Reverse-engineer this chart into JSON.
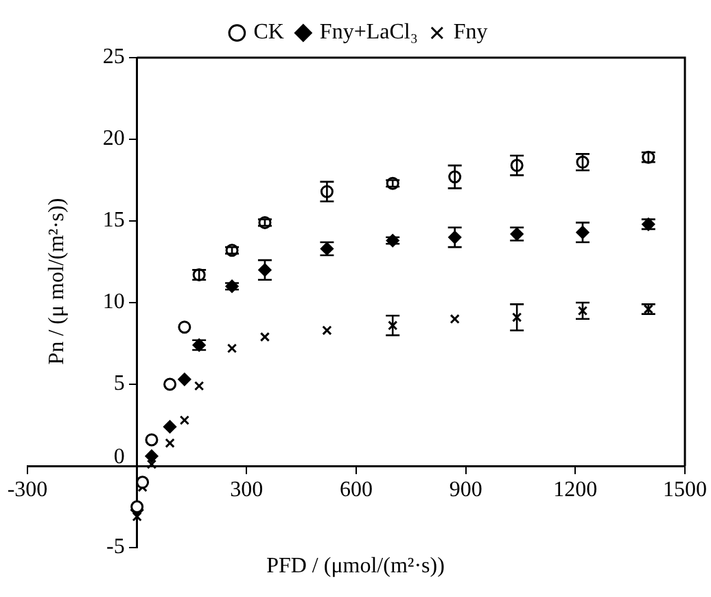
{
  "chart_data": {
    "type": "scatter",
    "xlabel": "PFD / (μmol/(m²·s))",
    "ylabel": "Pn / (μ mol/(m²·s))",
    "xlim": [
      -300,
      1500
    ],
    "xticks": [
      -300,
      300,
      600,
      900,
      1200,
      1500
    ],
    "ylim": [
      -5,
      25
    ],
    "yticks": [
      -5,
      0,
      5,
      10,
      15,
      20,
      25
    ],
    "grid": false,
    "legend": "top",
    "x": [
      0,
      15,
      40,
      90,
      130,
      170,
      260,
      350,
      520,
      700,
      870,
      1040,
      1220,
      1400
    ],
    "series": [
      {
        "name": "CK",
        "color": "#000000",
        "marker": "circle",
        "values": [
          -2.5,
          -1.0,
          1.6,
          5.0,
          8.5,
          11.7,
          13.2,
          14.9,
          16.8,
          17.3,
          17.7,
          18.4,
          18.6,
          18.9
        ],
        "errors": [
          null,
          null,
          null,
          null,
          null,
          0.3,
          0.2,
          0.2,
          0.6,
          0.2,
          0.7,
          0.6,
          0.5,
          0.3
        ]
      },
      {
        "name": "Fny+LaCl₃",
        "color": "#000000",
        "marker": "diamond",
        "values": [
          -2.7,
          null,
          0.6,
          2.4,
          5.3,
          7.4,
          11.0,
          12.0,
          13.3,
          13.8,
          14.0,
          14.2,
          14.3,
          14.8
        ],
        "errors": [
          null,
          null,
          null,
          null,
          null,
          0.3,
          0.2,
          0.6,
          0.4,
          0.2,
          0.6,
          0.4,
          0.6,
          0.3
        ]
      },
      {
        "name": "Fny",
        "color": "#000000",
        "marker": "cross",
        "values": [
          -3.1,
          -1.3,
          0.1,
          1.4,
          2.8,
          4.9,
          7.2,
          7.9,
          8.3,
          8.6,
          9.0,
          9.1,
          9.5,
          9.6
        ],
        "errors": [
          null,
          null,
          null,
          null,
          null,
          null,
          null,
          null,
          null,
          0.6,
          null,
          0.8,
          0.5,
          0.3
        ]
      }
    ]
  }
}
